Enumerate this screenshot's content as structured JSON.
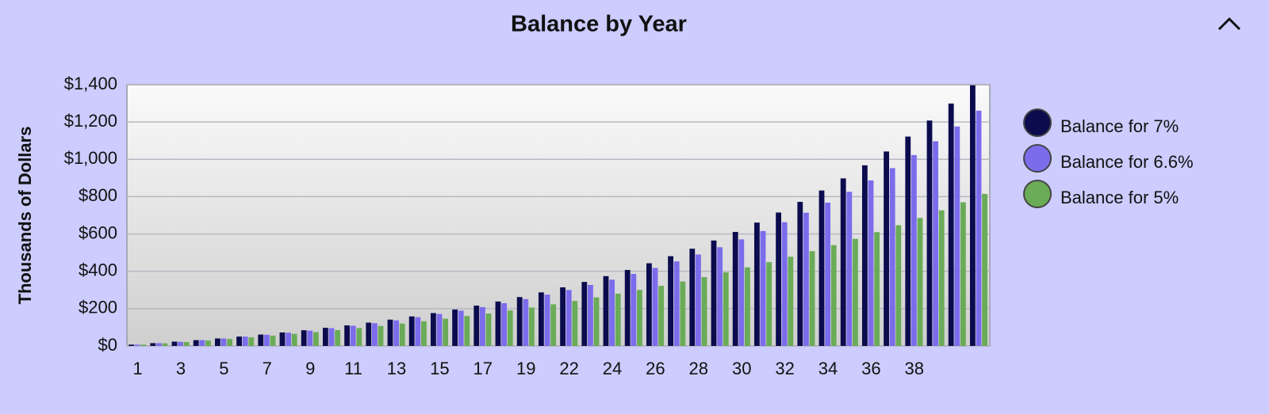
{
  "chart_data": {
    "type": "bar",
    "title": "Balance by Year",
    "y_axis_label": "Thousands of Dollars",
    "categories": [
      "1",
      null,
      "3",
      null,
      "5",
      null,
      "7",
      null,
      "9",
      null,
      "11",
      null,
      "13",
      null,
      "15",
      null,
      "17",
      null,
      "19",
      null,
      "22",
      null,
      "24",
      null,
      "26",
      null,
      "28",
      null,
      "30",
      null,
      "32",
      null,
      "34",
      null,
      "36",
      null,
      "38",
      null,
      null,
      null
    ],
    "series": [
      {
        "name": "Balance for 7%",
        "color": "#0b0b4e",
        "values": [
          7,
          15,
          23,
          31,
          40,
          50,
          61,
          72,
          84,
          97,
          110,
          125,
          141,
          158,
          176,
          195,
          216,
          238,
          262,
          287,
          314,
          343,
          374,
          407,
          443,
          481,
          521,
          565,
          611,
          661,
          715,
          772,
          833,
          898,
          968,
          1042,
          1122,
          1208,
          1299,
          1397
        ]
      },
      {
        "name": "Balance for 6.6%",
        "color": "#7b6cec",
        "values": [
          7,
          15,
          22,
          31,
          40,
          50,
          60,
          71,
          82,
          95,
          108,
          122,
          137,
          154,
          171,
          189,
          208,
          229,
          251,
          275,
          300,
          327,
          355,
          386,
          418,
          453,
          490,
          529,
          571,
          616,
          663,
          714,
          768,
          826,
          887,
          953,
          1023,
          1097,
          1176,
          1261
        ]
      },
      {
        "name": "Balance for 5%",
        "color": "#6aab58",
        "values": [
          7,
          14,
          21,
          29,
          37,
          46,
          55,
          65,
          74,
          85,
          96,
          107,
          120,
          132,
          146,
          160,
          174,
          190,
          206,
          223,
          241,
          260,
          280,
          300,
          322,
          345,
          369,
          394,
          421,
          449,
          478,
          508,
          540,
          574,
          610,
          647,
          686,
          727,
          770,
          815
        ]
      }
    ],
    "ylim": [
      0,
      1400
    ],
    "yticks": [
      {
        "value": 0,
        "label": "$0"
      },
      {
        "value": 200,
        "label": "$200"
      },
      {
        "value": 400,
        "label": "$400"
      },
      {
        "value": 600,
        "label": "$600"
      },
      {
        "value": 800,
        "label": "$800"
      },
      {
        "value": 1000,
        "label": "$1,000"
      },
      {
        "value": 1200,
        "label": "$1,200"
      },
      {
        "value": 1400,
        "label": "$1,400"
      }
    ],
    "grid": true,
    "legend": "right"
  }
}
